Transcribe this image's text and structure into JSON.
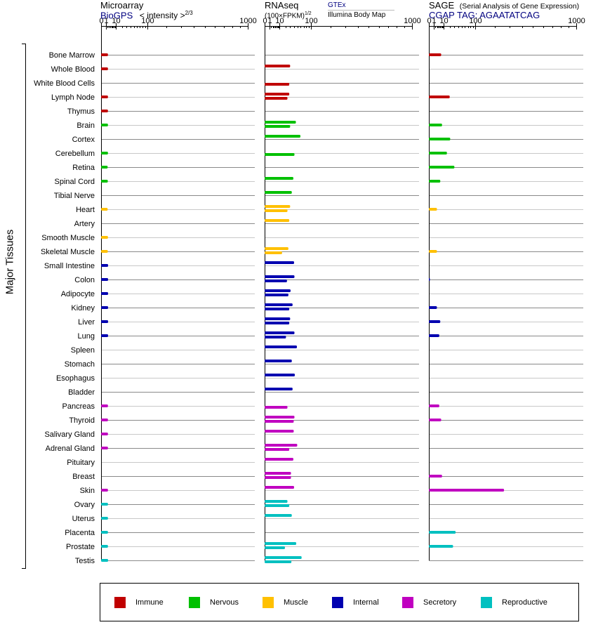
{
  "y_title": "Major Tissues",
  "panels": [
    {
      "title": "Microarray",
      "subtitle": "BioGPS",
      "subtitle_color": "#000080",
      "scale_label": "< intensity >",
      "scale_exp": "2/3"
    },
    {
      "title": "RNAseq",
      "scale_label": "(100×FPKM)",
      "scale_exp": "1/2",
      "source_top": "GTEx",
      "source_bottom": "Illumina Body Map"
    },
    {
      "title": "SAGE",
      "title_note": "(Serial Analysis of Gene Expression)",
      "subtitle": "CGAP TAG: AGAATATCAG",
      "subtitle_color": "#000080"
    }
  ],
  "legend": [
    {
      "label": "Immune",
      "color": "#c00000"
    },
    {
      "label": "Nervous",
      "color": "#00c000"
    },
    {
      "label": "Muscle",
      "color": "#ffc000"
    },
    {
      "label": "Internal",
      "color": "#0000b0"
    },
    {
      "label": "Secretory",
      "color": "#c000c0"
    },
    {
      "label": "Reproductive",
      "color": "#00c0c0"
    }
  ],
  "chart_data": {
    "type": "bar",
    "orientation": "horizontal",
    "x_scale": "power",
    "xlim": [
      0,
      1000
    ],
    "x_ticks": [
      "0",
      "1",
      "10",
      "100",
      "1000"
    ],
    "categories": [
      "Bone Marrow",
      "Whole Blood",
      "White Blood Cells",
      "Lymph Node",
      "Thymus",
      "Brain",
      "Cortex",
      "Cerebellum",
      "Retina",
      "Spinal Cord",
      "Tibial Nerve",
      "Heart",
      "Artery",
      "Smooth Muscle",
      "Skeletal Muscle",
      "Small Intestine",
      "Colon",
      "Adipocyte",
      "Kidney",
      "Liver",
      "Lung",
      "Spleen",
      "Stomach",
      "Esophagus",
      "Bladder",
      "Pancreas",
      "Thyroid",
      "Salivary Gland",
      "Adrenal Gland",
      "Pituitary",
      "Breast",
      "Skin",
      "Ovary",
      "Uterus",
      "Placenta",
      "Prostate",
      "Testis"
    ],
    "category_groups": [
      "Immune",
      "Immune",
      "Immune",
      "Immune",
      "Immune",
      "Nervous",
      "Nervous",
      "Nervous",
      "Nervous",
      "Nervous",
      "Nervous",
      "Muscle",
      "Muscle",
      "Muscle",
      "Muscle",
      "Internal",
      "Internal",
      "Internal",
      "Internal",
      "Internal",
      "Internal",
      "Internal",
      "Internal",
      "Internal",
      "Internal",
      "Secretory",
      "Secretory",
      "Secretory",
      "Secretory",
      "Secretory",
      "Secretory",
      "Secretory",
      "Reproductive",
      "Reproductive",
      "Reproductive",
      "Reproductive",
      "Reproductive"
    ],
    "series": [
      {
        "name": "Microarray",
        "values": [
          2.2,
          2.2,
          null,
          2.2,
          2.2,
          2.2,
          null,
          2.2,
          2.0,
          2.1,
          null,
          2.0,
          null,
          2.2,
          2.1,
          2.3,
          2.3,
          2.3,
          2.3,
          2.3,
          2.3,
          null,
          null,
          null,
          null,
          2.2,
          2.2,
          2.2,
          2.2,
          null,
          null,
          2.2,
          2.2,
          2.2,
          2.2,
          2.2,
          2.3
        ]
      },
      {
        "name": "GTEx",
        "values": [
          null,
          30,
          null,
          28,
          null,
          45,
          59,
          null,
          null,
          38,
          34,
          30,
          28,
          null,
          26,
          40,
          41,
          31,
          36,
          30,
          41,
          48,
          34,
          42,
          36,
          null,
          41,
          39,
          49,
          38,
          32,
          40,
          24,
          34,
          null,
          46,
          63
        ]
      },
      {
        "name": "Illumina Body Map",
        "values": [
          null,
          null,
          28,
          24,
          null,
          30,
          null,
          41,
          null,
          null,
          null,
          24,
          null,
          null,
          14,
          null,
          23,
          26,
          28,
          28,
          21,
          null,
          null,
          null,
          null,
          24,
          39,
          null,
          28,
          null,
          32,
          null,
          28,
          null,
          null,
          19,
          33
        ]
      },
      {
        "name": "SAGE",
        "values": [
          7,
          null,
          null,
          20,
          null,
          8,
          21,
          15,
          30,
          6,
          null,
          3,
          null,
          null,
          3,
          null,
          0,
          null,
          3,
          6,
          5,
          null,
          null,
          null,
          null,
          5,
          7,
          null,
          null,
          null,
          8,
          260,
          null,
          null,
          33,
          27,
          null
        ]
      }
    ]
  }
}
